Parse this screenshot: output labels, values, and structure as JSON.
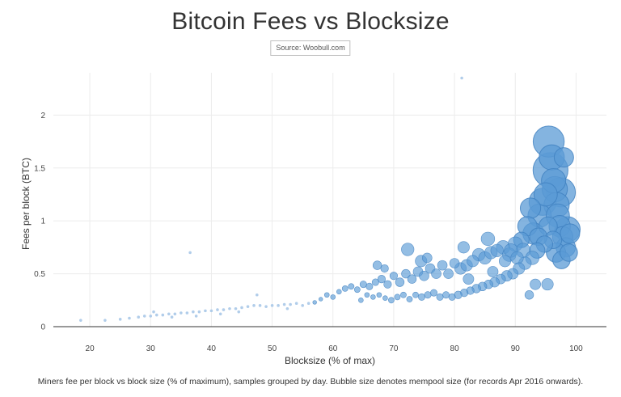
{
  "chart_data": {
    "type": "scatter",
    "title": "Bitcoin Fees vs Blocksize",
    "subtitle": "Source: Woobull.com",
    "xlabel": "Blocksize (% of max)",
    "ylabel": "Fees per block (BTC)",
    "caption": "Miners fee per block vs block size (% of maximum), samples grouped by day. Bubble size denotes mempool size (for records Apr 2016 onwards).",
    "xlim": [
      14,
      105
    ],
    "ylim": [
      0,
      2.4
    ],
    "xticks": [
      "20",
      "30",
      "40",
      "50",
      "60",
      "70",
      "80",
      "90",
      "100"
    ],
    "xtick_values": [
      20,
      30,
      40,
      50,
      60,
      70,
      80,
      90,
      100
    ],
    "yticks": [
      "0",
      "0.5",
      "1",
      "1.5",
      "2"
    ],
    "ytick_values": [
      0,
      0.5,
      1,
      1.5,
      2
    ],
    "grid": true,
    "colors": {
      "bubble_fill": "#5b9bd5",
      "bubble_stroke": "#3f7fbf",
      "small_dot": "#a9c8e8"
    },
    "points": [
      [
        18.5,
        0.06,
        0.3
      ],
      [
        22.5,
        0.06,
        0.3
      ],
      [
        25,
        0.07,
        0.3
      ],
      [
        26.5,
        0.08,
        0.3
      ],
      [
        28,
        0.09,
        0.3
      ],
      [
        29,
        0.1,
        0.3
      ],
      [
        30,
        0.1,
        0.3
      ],
      [
        31,
        0.11,
        0.3
      ],
      [
        32,
        0.11,
        0.3
      ],
      [
        33,
        0.12,
        0.3
      ],
      [
        34,
        0.12,
        0.3
      ],
      [
        35,
        0.13,
        0.3
      ],
      [
        36,
        0.13,
        0.3
      ],
      [
        37,
        0.14,
        0.3
      ],
      [
        38,
        0.14,
        0.3
      ],
      [
        39,
        0.15,
        0.3
      ],
      [
        40,
        0.15,
        0.3
      ],
      [
        41,
        0.16,
        0.3
      ],
      [
        42,
        0.16,
        0.3
      ],
      [
        43,
        0.17,
        0.3
      ],
      [
        44,
        0.17,
        0.3
      ],
      [
        45,
        0.18,
        0.3
      ],
      [
        46,
        0.19,
        0.3
      ],
      [
        47,
        0.2,
        0.3
      ],
      [
        48,
        0.2,
        0.3
      ],
      [
        49,
        0.19,
        0.3
      ],
      [
        50,
        0.2,
        0.3
      ],
      [
        51,
        0.2,
        0.3
      ],
      [
        52,
        0.21,
        0.3
      ],
      [
        53,
        0.21,
        0.3
      ],
      [
        54,
        0.22,
        0.3
      ],
      [
        55,
        0.2,
        0.3
      ],
      [
        56,
        0.22,
        0.3
      ],
      [
        36.5,
        0.7,
        0.3
      ],
      [
        81.2,
        2.35,
        0.3
      ],
      [
        30.5,
        0.14,
        0.3
      ],
      [
        33.5,
        0.09,
        0.3
      ],
      [
        37.5,
        0.1,
        0.3
      ],
      [
        41.5,
        0.12,
        0.3
      ],
      [
        44.5,
        0.14,
        0.3
      ],
      [
        47.5,
        0.3,
        0.3
      ],
      [
        52.5,
        0.17,
        0.3
      ],
      [
        57,
        0.23,
        0.4
      ],
      [
        58,
        0.26,
        0.4
      ],
      [
        59,
        0.3,
        0.5
      ],
      [
        60,
        0.28,
        0.5
      ],
      [
        61,
        0.33,
        0.5
      ],
      [
        62,
        0.36,
        0.6
      ],
      [
        63,
        0.38,
        0.6
      ],
      [
        64,
        0.35,
        0.6
      ],
      [
        65,
        0.4,
        0.7
      ],
      [
        66,
        0.38,
        0.7
      ],
      [
        67,
        0.42,
        0.7
      ],
      [
        68,
        0.45,
        0.8
      ],
      [
        69,
        0.4,
        0.8
      ],
      [
        70,
        0.48,
        0.8
      ],
      [
        71,
        0.42,
        0.9
      ],
      [
        72,
        0.5,
        0.9
      ],
      [
        72.3,
        0.73,
        1.3
      ],
      [
        73,
        0.45,
        0.9
      ],
      [
        74,
        0.52,
        1
      ],
      [
        74.5,
        0.62,
        1.2
      ],
      [
        75,
        0.48,
        1
      ],
      [
        76,
        0.55,
        1
      ],
      [
        77,
        0.5,
        1
      ],
      [
        78,
        0.58,
        1
      ],
      [
        79,
        0.5,
        1
      ],
      [
        80,
        0.6,
        1
      ],
      [
        81,
        0.55,
        1.2
      ],
      [
        81.5,
        0.75,
        1.2
      ],
      [
        82,
        0.58,
        1.2
      ],
      [
        83,
        0.62,
        1.2
      ],
      [
        84,
        0.68,
        1.3
      ],
      [
        85,
        0.65,
        1.3
      ],
      [
        85.5,
        0.83,
        1.4
      ],
      [
        86,
        0.7,
        1.3
      ],
      [
        87,
        0.72,
        1.3
      ],
      [
        88,
        0.75,
        1.4
      ],
      [
        89,
        0.68,
        1.4
      ],
      [
        90,
        0.78,
        1.5
      ],
      [
        91,
        0.82,
        1.6
      ],
      [
        92,
        0.95,
        2
      ],
      [
        92.5,
        1.12,
        2.1
      ],
      [
        93,
        0.88,
        2.2
      ],
      [
        94,
        1.05,
        2.4
      ],
      [
        94.5,
        1.18,
        2.8
      ],
      [
        95,
        1.25,
        2.4
      ],
      [
        95.5,
        1.75,
        3.2
      ],
      [
        95.8,
        1.48,
        3.6
      ],
      [
        96,
        1.6,
        2.6
      ],
      [
        96.3,
        1.38,
        2.5
      ],
      [
        96.5,
        1.3,
        2.6
      ],
      [
        96.8,
        1.15,
        2.6
      ],
      [
        97,
        1.05,
        2.4
      ],
      [
        97.3,
        0.95,
        2.2
      ],
      [
        97.5,
        1.27,
        3
      ],
      [
        97.8,
        0.85,
        2.1
      ],
      [
        98,
        1.6,
        2
      ],
      [
        98.3,
        0.75,
        2
      ],
      [
        98.6,
        0.92,
        2.6
      ],
      [
        99,
        0.88,
        2
      ],
      [
        97.6,
        0.63,
        1.8
      ],
      [
        96.2,
        0.82,
        1.8
      ],
      [
        95.4,
        0.95,
        1.9
      ],
      [
        94.8,
        0.78,
        1.7
      ],
      [
        93.6,
        0.72,
        1.6
      ],
      [
        92.8,
        0.65,
        1.4
      ],
      [
        91.6,
        0.6,
        1.3
      ],
      [
        90.6,
        0.55,
        1.2
      ],
      [
        89.6,
        0.5,
        1.1
      ],
      [
        88.6,
        0.48,
        1.1
      ],
      [
        87.6,
        0.45,
        1
      ],
      [
        86.6,
        0.42,
        1
      ],
      [
        85.6,
        0.4,
        0.9
      ],
      [
        84.6,
        0.38,
        0.9
      ],
      [
        83.6,
        0.36,
        0.9
      ],
      [
        82.6,
        0.34,
        0.8
      ],
      [
        81.6,
        0.32,
        0.8
      ],
      [
        80.6,
        0.3,
        0.8
      ],
      [
        79.6,
        0.28,
        0.7
      ],
      [
        78.6,
        0.3,
        0.7
      ],
      [
        77.6,
        0.28,
        0.7
      ],
      [
        76.6,
        0.32,
        0.7
      ],
      [
        75.6,
        0.3,
        0.7
      ],
      [
        74.6,
        0.28,
        0.7
      ],
      [
        73.6,
        0.3,
        0.6
      ],
      [
        72.6,
        0.26,
        0.6
      ],
      [
        71.6,
        0.3,
        0.6
      ],
      [
        70.6,
        0.28,
        0.6
      ],
      [
        69.6,
        0.25,
        0.6
      ],
      [
        68.6,
        0.27,
        0.5
      ],
      [
        67.6,
        0.3,
        0.5
      ],
      [
        66.6,
        0.28,
        0.5
      ],
      [
        65.6,
        0.3,
        0.5
      ],
      [
        64.6,
        0.25,
        0.5
      ],
      [
        67.3,
        0.58,
        0.9
      ],
      [
        68.5,
        0.55,
        0.8
      ],
      [
        75.5,
        0.65,
        1
      ],
      [
        82.3,
        0.45,
        1.1
      ],
      [
        86.3,
        0.52,
        1.1
      ],
      [
        88.3,
        0.62,
        1.2
      ],
      [
        90.3,
        0.65,
        1.3
      ],
      [
        92.3,
        0.3,
        0.9
      ],
      [
        93.3,
        0.4,
        1.1
      ],
      [
        95.3,
        0.4,
        1.2
      ],
      [
        93.8,
        0.85,
        1.8
      ],
      [
        96.7,
        0.7,
        2
      ],
      [
        98.8,
        0.7,
        1.8
      ],
      [
        91.3,
        0.72,
        1.5
      ],
      [
        89.3,
        0.72,
        1.4
      ]
    ]
  }
}
